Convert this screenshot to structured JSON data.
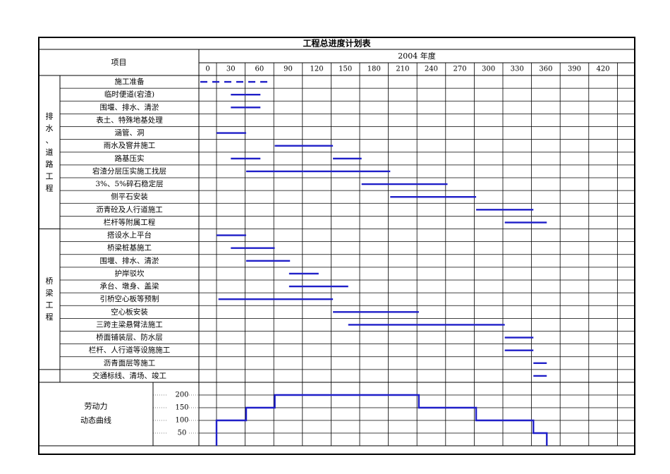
{
  "title": "工程总进度计划表",
  "header": {
    "item_label": "项目",
    "year_label": "2004 年度",
    "days": [
      "0",
      "30",
      "60",
      "90",
      "120",
      "150",
      "180",
      "210",
      "240",
      "270",
      "300",
      "330",
      "360",
      "390",
      "420"
    ]
  },
  "colors": {
    "bar": "#1f1fc8",
    "grid": "#000000",
    "title": "#1f1fc8"
  },
  "groups": [
    {
      "name": "排水、道路工程",
      "chars": [
        "排",
        "水",
        "、",
        "道",
        "路",
        "工",
        "程"
      ],
      "row_start": 0,
      "row_end": 11
    },
    {
      "name": "桥梁工程",
      "chars": [
        "桥",
        "梁",
        "工",
        "程"
      ],
      "row_start": 12,
      "row_end": 22
    },
    {
      "name": "",
      "chars": [],
      "row_start": 23,
      "row_end": 23
    }
  ],
  "tasks": [
    {
      "name": "施工准备",
      "start": 0,
      "end": 75,
      "dashed": true
    },
    {
      "name": "临时便道(宕渣)",
      "start": 33,
      "end": 64
    },
    {
      "name": "围堰、排水、清淤",
      "start": 33,
      "end": 64
    },
    {
      "name": "表土、特殊地基处理"
    },
    {
      "name": "涵管、洞",
      "start": 18,
      "end": 49
    },
    {
      "name": "雨水及窨井施工",
      "start": 79,
      "end": 140
    },
    {
      "name": "路基压实",
      "start": 33,
      "end": 64
    },
    {
      "name": "路基压实",
      "start": 140,
      "end": 170
    },
    {
      "name": "宕渣分层压实施工找层",
      "start": 49,
      "end": 109
    },
    {
      "name": "宕渣分层压实施工找层",
      "start": 109,
      "end": 200
    },
    {
      "name": "3%、5%碎石稳定层",
      "start": 170,
      "end": 260
    },
    {
      "name": "侧平石安装",
      "start": 200,
      "end": 290
    },
    {
      "name": "沥青砼及人行道施工",
      "start": 290,
      "end": 350
    },
    {
      "name": "栏杆等附属工程",
      "start": 320,
      "end": 364
    },
    {
      "name": "搭设水上平台",
      "start": 18,
      "end": 49
    },
    {
      "name": "桥梁桩基施工",
      "start": 33,
      "end": 79
    },
    {
      "name": "围堰、排水、清淤",
      "start": 49,
      "end": 95
    },
    {
      "name": "护岸驳坎",
      "start": 94,
      "end": 125
    },
    {
      "name": "承台、墩身、盖梁",
      "start": 94,
      "end": 156
    },
    {
      "name": "引桥空心板等预制",
      "start": 20,
      "end": 140
    },
    {
      "name": "空心板安装",
      "start": 140,
      "end": 230
    },
    {
      "name": "三跨主梁悬臂法施工",
      "start": 156,
      "end": 320
    },
    {
      "name": "桥面铺装层、防水层",
      "start": 320,
      "end": 350
    },
    {
      "name": "栏杆、人行道等设施施工",
      "start": 320,
      "end": 350
    },
    {
      "name": "沥青面层等施工",
      "start": 350,
      "end": 364
    },
    {
      "name": "交通标线、清场、竣工",
      "start": 350,
      "end": 364
    }
  ],
  "rows": [
    "施工准备",
    "临时便道(宕渣)",
    "围堰、排水、清淤",
    "表土、特殊地基处理",
    "涵管、洞",
    "雨水及窨井施工",
    "路基压实",
    "宕渣分层压实施工找层",
    "3%、5%碎石稳定层",
    "侧平石安装",
    "沥青砼及人行道施工",
    "栏杆等附属工程",
    "搭设水上平台",
    "桥梁桩基施工",
    "围堰、排水、清淤",
    "护岸驳坎",
    "承台、墩身、盖梁",
    "引桥空心板等预制",
    "空心板安装",
    "三跨主梁悬臂法施工",
    "桥面铺装层、防水层",
    "栏杆、人行道等设施施工",
    "沥青面层等施工",
    "交通标线、清场、竣工"
  ],
  "labor": {
    "label_line1": "劳动力",
    "label_line2": "动态曲线",
    "ticks": [
      "200",
      "150",
      "100",
      "50"
    ],
    "tick_values": [
      200,
      150,
      100,
      50
    ],
    "steps": [
      [
        18,
        0
      ],
      [
        18,
        100
      ],
      [
        49,
        100
      ],
      [
        49,
        150
      ],
      [
        79,
        150
      ],
      [
        79,
        200
      ],
      [
        230,
        200
      ],
      [
        230,
        150
      ],
      [
        290,
        150
      ],
      [
        290,
        100
      ],
      [
        350,
        100
      ],
      [
        350,
        50
      ],
      [
        364,
        50
      ],
      [
        364,
        0
      ]
    ]
  }
}
